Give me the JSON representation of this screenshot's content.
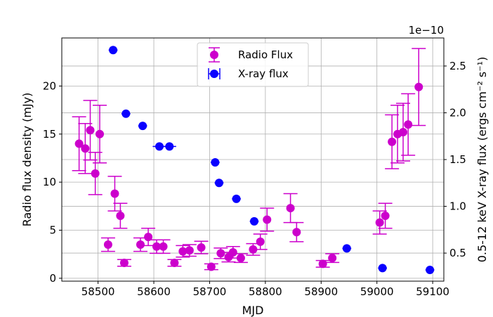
{
  "chart_data": {
    "type": "scatter",
    "xlabel": "MJD",
    "ylabel": "Radio flux density (mJy)",
    "y2label": "0.5-12 keV X-ray flux (ergs cm⁻² s⁻¹)",
    "y2_offset_label": "1e−10",
    "xlim": [
      58435,
      59120
    ],
    "ylim": [
      -0.3,
      25
    ],
    "y2lim": [
      0.2,
      2.8
    ],
    "xticks": [
      58500,
      58600,
      58700,
      58800,
      58900,
      59000,
      59100
    ],
    "yticks": [
      0,
      5,
      10,
      15,
      20
    ],
    "y2ticks": [
      0.5,
      1.0,
      1.5,
      2.0,
      2.5
    ],
    "y2_tick_labels": [
      "0.5",
      "1.0",
      "1.5",
      "2.0",
      "2.5"
    ],
    "grid": true,
    "legend_position": "top-center",
    "series": [
      {
        "name": "Radio Flux",
        "axis": "left",
        "color": "#cc00cc",
        "errorbar": "y",
        "points": [
          {
            "x": 58466,
            "y": 14.0,
            "err": 2.8
          },
          {
            "x": 58477,
            "y": 13.5,
            "err": 2.6
          },
          {
            "x": 58486,
            "y": 15.4,
            "err": 3.1
          },
          {
            "x": 58495,
            "y": 10.9,
            "err": 2.2
          },
          {
            "x": 58503,
            "y": 15.0,
            "err": 3.0
          },
          {
            "x": 58518,
            "y": 3.5,
            "err": 0.7
          },
          {
            "x": 58530,
            "y": 8.8,
            "err": 1.8
          },
          {
            "x": 58540,
            "y": 6.5,
            "err": 1.3
          },
          {
            "x": 58547,
            "y": 1.6,
            "err": 0.35
          },
          {
            "x": 58576,
            "y": 3.5,
            "err": 0.7
          },
          {
            "x": 58590,
            "y": 4.3,
            "err": 0.9
          },
          {
            "x": 58605,
            "y": 3.3,
            "err": 0.7
          },
          {
            "x": 58617,
            "y": 3.3,
            "err": 0.7
          },
          {
            "x": 58637,
            "y": 1.6,
            "err": 0.35
          },
          {
            "x": 58652,
            "y": 2.8,
            "err": 0.6
          },
          {
            "x": 58664,
            "y": 2.9,
            "err": 0.6
          },
          {
            "x": 58685,
            "y": 3.2,
            "err": 0.65
          },
          {
            "x": 58703,
            "y": 1.2,
            "err": 0.3
          },
          {
            "x": 58720,
            "y": 2.6,
            "err": 0.55
          },
          {
            "x": 58734,
            "y": 2.2,
            "err": 0.5
          },
          {
            "x": 58742,
            "y": 2.7,
            "err": 0.6
          },
          {
            "x": 58756,
            "y": 2.1,
            "err": 0.45
          },
          {
            "x": 58778,
            "y": 3.0,
            "err": 0.6
          },
          {
            "x": 58791,
            "y": 3.8,
            "err": 0.8
          },
          {
            "x": 58803,
            "y": 6.1,
            "err": 1.2
          },
          {
            "x": 58845,
            "y": 7.3,
            "err": 1.5
          },
          {
            "x": 58856,
            "y": 4.8,
            "err": 1.0
          },
          {
            "x": 58903,
            "y": 1.5,
            "err": 0.35
          },
          {
            "x": 58920,
            "y": 2.1,
            "err": 0.45
          },
          {
            "x": 59005,
            "y": 5.8,
            "err": 1.2
          },
          {
            "x": 59015,
            "y": 6.5,
            "err": 1.3
          },
          {
            "x": 59027,
            "y": 14.2,
            "err": 2.8
          },
          {
            "x": 59037,
            "y": 15.0,
            "err": 3.0
          },
          {
            "x": 59047,
            "y": 15.2,
            "err": 3.0
          },
          {
            "x": 59056,
            "y": 16.0,
            "err": 3.2
          },
          {
            "x": 59075,
            "y": 19.9,
            "err": 4.0
          }
        ]
      },
      {
        "name": "X-ray flux",
        "axis": "right",
        "color": "#0a00ff",
        "errorbar": "x",
        "points": [
          {
            "x": 58527,
            "y": 2.67,
            "xerr": 8
          },
          {
            "x": 58550,
            "y": 1.99,
            "xerr": 8
          },
          {
            "x": 58580,
            "y": 1.86,
            "xerr": 8
          },
          {
            "x": 58610,
            "y": 1.64,
            "xerr": 12
          },
          {
            "x": 58628,
            "y": 1.64,
            "xerr": 12
          },
          {
            "x": 58710,
            "y": 1.47,
            "xerr": 8
          },
          {
            "x": 58717,
            "y": 1.25,
            "xerr": 8
          },
          {
            "x": 58748,
            "y": 1.08,
            "xerr": 8
          },
          {
            "x": 58780,
            "y": 0.84,
            "xerr": 8
          },
          {
            "x": 58946,
            "y": 0.55,
            "xerr": 8
          },
          {
            "x": 59010,
            "y": 0.34,
            "xerr": 8
          },
          {
            "x": 59095,
            "y": 0.32,
            "xerr": 8
          }
        ]
      }
    ]
  }
}
